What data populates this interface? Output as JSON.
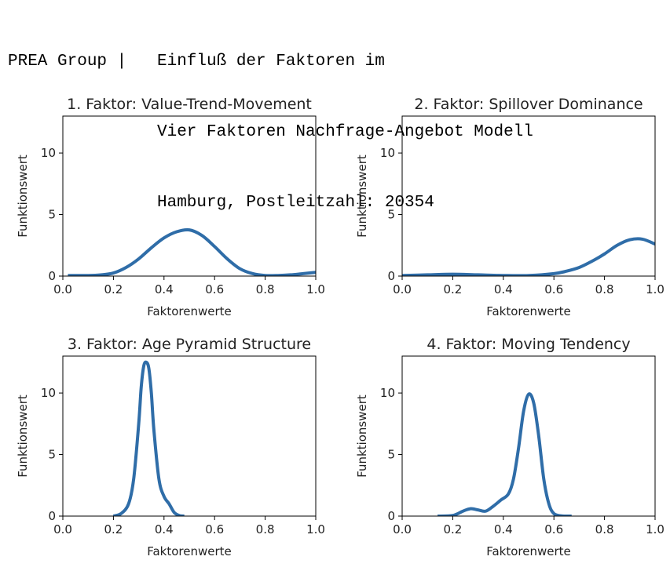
{
  "header": {
    "brand": "PREA Group |",
    "title_lines": [
      "Einfluß der Faktoren im",
      "Vier Faktoren Nachfrage-Angebot Modell",
      "Hamburg, Postleitzahl: 20354"
    ]
  },
  "style": {
    "line_color": "#2f6da8"
  },
  "chart_data": [
    {
      "type": "line",
      "title": "1. Faktor: Value-Trend-Movement",
      "xlabel": "Faktorenwerte",
      "ylabel": "Funktionswert",
      "xlim": [
        0,
        1
      ],
      "ylim": [
        0,
        13
      ],
      "xticks": [
        "0.0",
        "0.2",
        "0.4",
        "0.6",
        "0.8",
        "1.0"
      ],
      "yticks": [
        "0",
        "5",
        "10"
      ],
      "series": [
        {
          "name": "density",
          "x": [
            0.02,
            0.1,
            0.15,
            0.2,
            0.25,
            0.3,
            0.35,
            0.4,
            0.45,
            0.5,
            0.55,
            0.6,
            0.65,
            0.7,
            0.75,
            0.8,
            0.85,
            0.9,
            0.95,
            1.0
          ],
          "y": [
            0.05,
            0.05,
            0.1,
            0.25,
            0.7,
            1.4,
            2.3,
            3.1,
            3.6,
            3.75,
            3.3,
            2.4,
            1.4,
            0.6,
            0.2,
            0.05,
            0.05,
            0.1,
            0.2,
            0.3
          ]
        }
      ]
    },
    {
      "type": "line",
      "title": "2. Faktor: Spillover Dominance",
      "xlabel": "Faktorenwerte",
      "ylabel": "Funktionswert",
      "xlim": [
        0,
        1
      ],
      "ylim": [
        0,
        13
      ],
      "xticks": [
        "0.0",
        "0.2",
        "0.4",
        "0.6",
        "0.8",
        "1.0"
      ],
      "yticks": [
        "0",
        "5",
        "10"
      ],
      "series": [
        {
          "name": "density",
          "x": [
            0.0,
            0.1,
            0.2,
            0.3,
            0.4,
            0.5,
            0.6,
            0.65,
            0.7,
            0.75,
            0.8,
            0.85,
            0.9,
            0.95,
            1.0
          ],
          "y": [
            0.05,
            0.1,
            0.15,
            0.1,
            0.05,
            0.05,
            0.2,
            0.4,
            0.7,
            1.2,
            1.8,
            2.5,
            2.95,
            3.0,
            2.6
          ]
        }
      ]
    },
    {
      "type": "line",
      "title": "3. Faktor: Age Pyramid Structure",
      "xlabel": "Faktorenwerte",
      "ylabel": "Funktionswert",
      "xlim": [
        0,
        1
      ],
      "ylim": [
        0,
        13
      ],
      "xticks": [
        "0.0",
        "0.2",
        "0.4",
        "0.6",
        "0.8",
        "1.0"
      ],
      "yticks": [
        "0",
        "5",
        "10"
      ],
      "series": [
        {
          "name": "density",
          "x": [
            0.2,
            0.23,
            0.26,
            0.28,
            0.3,
            0.31,
            0.32,
            0.33,
            0.34,
            0.35,
            0.36,
            0.38,
            0.4,
            0.42,
            0.44,
            0.46,
            0.48
          ],
          "y": [
            0.0,
            0.2,
            1.0,
            3.0,
            7.5,
            10.5,
            12.2,
            12.5,
            12.0,
            10.0,
            7.0,
            3.0,
            1.6,
            1.0,
            0.3,
            0.05,
            0.0
          ]
        }
      ]
    },
    {
      "type": "line",
      "title": "4. Faktor: Moving Tendency",
      "xlabel": "Faktorenwerte",
      "ylabel": "Funktionswert",
      "xlim": [
        0,
        1
      ],
      "ylim": [
        0,
        13
      ],
      "xticks": [
        "0.0",
        "0.2",
        "0.4",
        "0.6",
        "0.8",
        "1.0"
      ],
      "yticks": [
        "0",
        "5",
        "10"
      ],
      "series": [
        {
          "name": "density",
          "x": [
            0.14,
            0.2,
            0.24,
            0.27,
            0.3,
            0.33,
            0.36,
            0.39,
            0.42,
            0.44,
            0.46,
            0.48,
            0.5,
            0.52,
            0.54,
            0.56,
            0.58,
            0.6,
            0.63,
            0.67
          ],
          "y": [
            0.0,
            0.05,
            0.4,
            0.6,
            0.5,
            0.4,
            0.8,
            1.3,
            1.8,
            3.0,
            5.5,
            8.5,
            9.9,
            9.2,
            6.5,
            3.0,
            1.0,
            0.2,
            0.02,
            0.0
          ]
        }
      ]
    }
  ]
}
